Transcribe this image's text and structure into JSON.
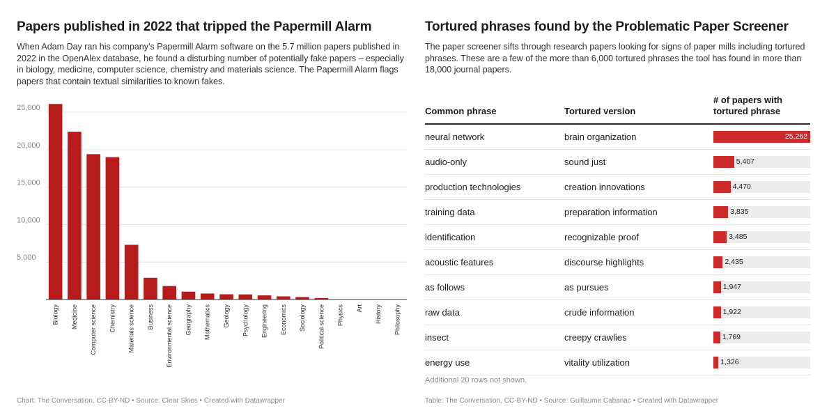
{
  "left": {
    "title": "Papers published in 2022 that tripped the Papermill Alarm",
    "description": "When Adam Day ran his company’s Papermill Alarm software on the 5.7 million papers published in 2022 in the OpenAlex database, he found a disturbing number of potentially fake papers  – especially in biology, medicine, computer science, chemistry and materials science. The Papermill Alarm flags papers that contain textual similarities to known fakes.",
    "footer": "Chart: The Conversation, CC-BY-ND • Source: Clear Skies • Created with Datawrapper"
  },
  "chart_data": {
    "type": "bar",
    "title": "Papers published in 2022 that tripped the Papermill Alarm",
    "categories": [
      "Biology",
      "Medicine",
      "Computer science",
      "Chemistry",
      "Materials science",
      "Business",
      "Environmental science",
      "Geography",
      "Mathematics",
      "Geology",
      "Psychology",
      "Engineering",
      "Economics",
      "Sociology",
      "Political science",
      "Physics",
      "Art",
      "History",
      "Philosophy"
    ],
    "values": [
      26100,
      22400,
      19400,
      19000,
      7300,
      2900,
      1800,
      1050,
      800,
      700,
      680,
      550,
      420,
      330,
      200,
      40,
      20,
      15,
      10
    ],
    "yticks": [
      5000,
      10000,
      15000,
      20000,
      25000
    ],
    "ytick_labels": [
      "5,000",
      "10,000",
      "15,000",
      "20,000",
      "25,000"
    ],
    "ylim": [
      0,
      26500
    ],
    "xlabel": "",
    "ylabel": "",
    "grid": true,
    "bar_color": "#b71c1c"
  },
  "right": {
    "title": "Tortured phrases found by the Problematic Paper Screener",
    "description": "The paper screener sifts through research papers looking for signs of paper mills including tortured phrases. These are a few of the more than 6,000 tortured phrases the tool has found in more than 18,000 journal papers.",
    "headers": {
      "common": "Common phrase",
      "tortured": "Tortured version",
      "count": "# of papers with tortured phrase"
    },
    "max_count": 25262,
    "rows": [
      {
        "common": "neural network",
        "tortured": "brain organization",
        "count": 25262,
        "label": "25,262"
      },
      {
        "common": "audio-only",
        "tortured": "sound just",
        "count": 5407,
        "label": "5,407"
      },
      {
        "common": "production technologies",
        "tortured": "creation innovations",
        "count": 4470,
        "label": "4,470"
      },
      {
        "common": "training data",
        "tortured": "preparation information",
        "count": 3835,
        "label": "3,835"
      },
      {
        "common": "identification",
        "tortured": "recognizable proof",
        "count": 3485,
        "label": "3,485"
      },
      {
        "common": "acoustic features",
        "tortured": "discourse highlights",
        "count": 2435,
        "label": "2,435"
      },
      {
        "common": "as follows",
        "tortured": "as pursues",
        "count": 1947,
        "label": "1,947"
      },
      {
        "common": "raw data",
        "tortured": "crude information",
        "count": 1922,
        "label": "1,922"
      },
      {
        "common": "insect",
        "tortured": "creepy crawlies",
        "count": 1769,
        "label": "1,769"
      },
      {
        "common": "energy use",
        "tortured": "vitality utilization",
        "count": 1326,
        "label": "1,326"
      }
    ],
    "more_rows": "Additional 20 rows not shown.",
    "footer": "Table: The Conversation, CC-BY-ND • Source: Guillaume Cabanac • Created with Datawrapper",
    "bar_color": "#cc2a2a"
  }
}
